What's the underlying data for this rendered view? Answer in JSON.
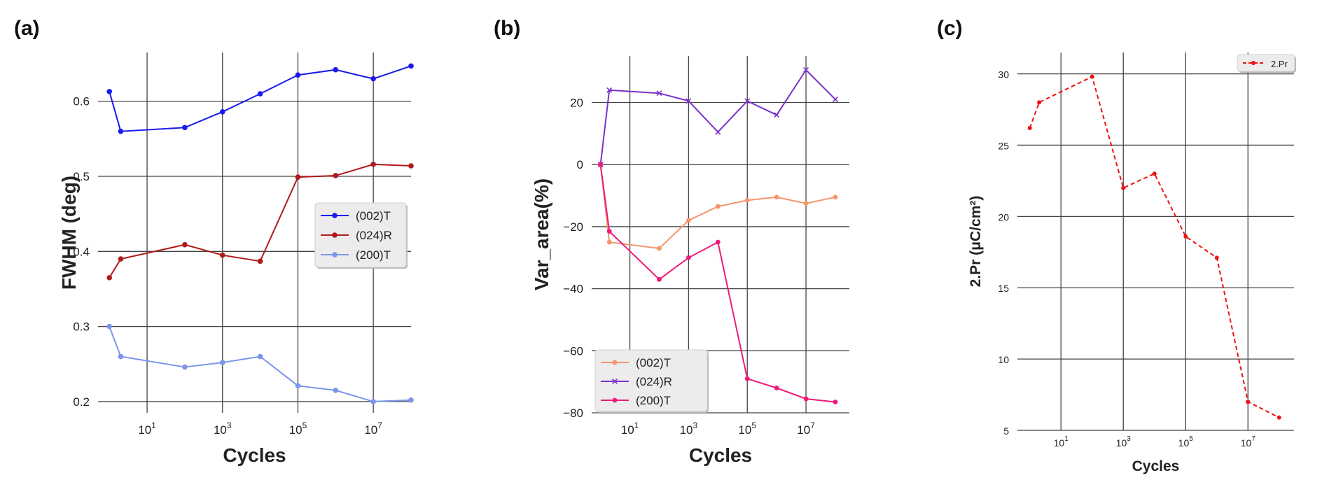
{
  "chart_data": [
    {
      "type": "line",
      "panel_label": "(a)",
      "xlabel": "Cycles",
      "ylabel": "FWHM (deg)",
      "xscale": "log",
      "xlim": [
        0.5,
        100000000
      ],
      "ylim": [
        0.185,
        0.665
      ],
      "x_ticks": [
        10,
        1000,
        100000,
        10000000
      ],
      "x_tick_bases": [
        "10",
        "10",
        "10",
        "10"
      ],
      "x_tick_exponents": [
        "1",
        "3",
        "5",
        "7"
      ],
      "y_ticks": [
        0.2,
        0.3,
        0.4,
        0.5,
        0.6
      ],
      "y_tick_labels": [
        "0.2",
        "0.3",
        "0.4",
        "0.5",
        "0.6"
      ],
      "grid": true,
      "legend_position": "center-right",
      "series": [
        {
          "name": "(002)T",
          "color": "#1a1aee",
          "marker": "circle",
          "linestyle": "solid",
          "x": [
            1,
            2,
            100,
            1000,
            10000,
            100000,
            1000000,
            10000000,
            100000000
          ],
          "y": [
            0.613,
            0.56,
            0.565,
            0.586,
            0.61,
            0.635,
            0.642,
            0.63,
            0.647
          ]
        },
        {
          "name": "(024)R",
          "color": "#b01a1a",
          "marker": "circle",
          "linestyle": "solid",
          "x": [
            1,
            2,
            100,
            1000,
            10000,
            100000,
            1000000,
            10000000,
            100000000
          ],
          "y": [
            0.365,
            0.39,
            0.409,
            0.395,
            0.387,
            0.499,
            0.501,
            0.516,
            0.514
          ]
        },
        {
          "name": "(200)T",
          "color": "#7b96ea",
          "marker": "circle",
          "linestyle": "solid",
          "x": [
            1,
            2,
            100,
            1000,
            10000,
            100000,
            1000000,
            10000000,
            100000000
          ],
          "y": [
            0.3,
            0.26,
            0.246,
            0.252,
            0.26,
            0.221,
            0.215,
            0.2,
            0.202
          ]
        }
      ]
    },
    {
      "type": "line",
      "panel_label": "(b)",
      "xlabel": "Cycles",
      "ylabel": "Var_area(%)",
      "xscale": "log",
      "xlim": [
        0.5,
        300000000
      ],
      "ylim": [
        -80,
        35
      ],
      "x_ticks": [
        10,
        1000,
        100000,
        10000000
      ],
      "x_tick_bases": [
        "10",
        "10",
        "10",
        "10"
      ],
      "x_tick_exponents": [
        "1",
        "3",
        "5",
        "7"
      ],
      "y_ticks": [
        -80,
        -60,
        -40,
        -20,
        0,
        20
      ],
      "y_tick_labels": [
        "−80",
        "−60",
        "−40",
        "−20",
        "0",
        "20"
      ],
      "grid": true,
      "legend_position": "lower-left",
      "series": [
        {
          "name": "(002)T",
          "color": "#f4956a",
          "marker": "circle",
          "linestyle": "solid",
          "x": [
            1,
            2,
            100,
            1000,
            10000,
            100000,
            1000000,
            10000000,
            100000000
          ],
          "y": [
            0,
            -25,
            -27,
            -18,
            -13.5,
            -11.5,
            -10.5,
            -12.5,
            -10.5
          ]
        },
        {
          "name": "(024)R",
          "color": "#7a30cc",
          "marker": "x",
          "linestyle": "solid",
          "x": [
            1,
            2,
            100,
            1000,
            10000,
            100000,
            1000000,
            10000000,
            100000000
          ],
          "y": [
            0,
            24,
            23,
            20.5,
            10.5,
            20.5,
            16,
            30.5,
            21
          ]
        },
        {
          "name": "(200)T",
          "color": "#ee1a7a",
          "marker": "circle",
          "linestyle": "solid",
          "x": [
            1,
            2,
            100,
            1000,
            10000,
            100000,
            1000000,
            10000000,
            100000000
          ],
          "y": [
            0,
            -21.5,
            -37,
            -30,
            -25,
            -69,
            -72,
            -75.5,
            -76.5
          ]
        }
      ]
    },
    {
      "type": "line",
      "panel_label": "(c)",
      "xlabel": "Cycles",
      "ylabel": "2.Pr (μC/cm²)",
      "xscale": "log",
      "xlim": [
        0.4,
        300000000
      ],
      "ylim": [
        5,
        31.5
      ],
      "x_ticks": [
        10,
        1000,
        100000,
        10000000
      ],
      "x_tick_bases": [
        "10",
        "10",
        "10",
        "10"
      ],
      "x_tick_exponents": [
        "1",
        "3",
        "5",
        "7"
      ],
      "y_ticks": [
        5,
        10,
        15,
        20,
        25,
        30
      ],
      "y_tick_labels": [
        "5",
        "10",
        "15",
        "20",
        "25",
        "30"
      ],
      "grid": true,
      "legend_position": "top-right",
      "series": [
        {
          "name": "2.Pr",
          "color": "#ee1111",
          "marker": "circle",
          "linestyle": "dashed",
          "x": [
            1,
            2,
            100,
            1000,
            10000,
            100000,
            1000000,
            10000000,
            100000000
          ],
          "y": [
            26.2,
            28,
            29.8,
            22,
            23,
            18.6,
            17.1,
            7,
            5.9
          ]
        }
      ]
    }
  ]
}
